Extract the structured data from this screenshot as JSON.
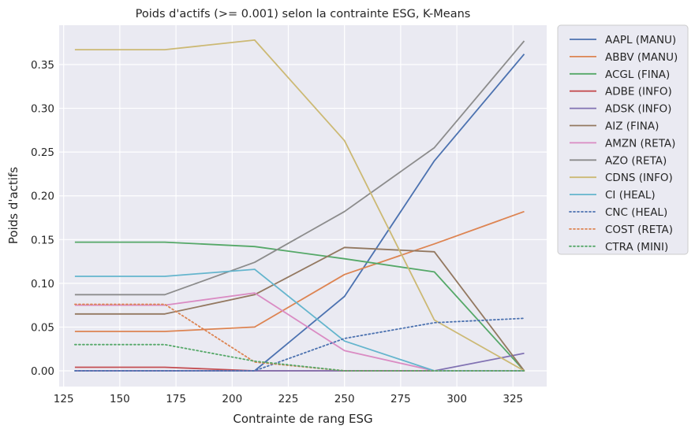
{
  "chart_data": {
    "type": "line",
    "title": "Poids d'actifs (>= 0.001) selon la contrainte ESG, K-Means",
    "xlabel": "Contrainte de rang ESG",
    "ylabel": "Poids d'actifs",
    "x": [
      130,
      170,
      210,
      250,
      290,
      330
    ],
    "xlim": [
      123,
      340
    ],
    "ylim": [
      -0.018,
      0.395
    ],
    "xticks": [
      125,
      150,
      175,
      200,
      225,
      250,
      275,
      300,
      325
    ],
    "yticks": [
      0.0,
      0.05,
      0.1,
      0.15,
      0.2,
      0.25,
      0.3,
      0.35
    ],
    "ytick_labels": [
      "0.00",
      "0.05",
      "0.10",
      "0.15",
      "0.20",
      "0.25",
      "0.30",
      "0.35"
    ],
    "grid": true,
    "legend_placement": "outside-right",
    "background": "#eaeaf2",
    "series": [
      {
        "name": "AAPL (MANU)",
        "color": "#4c72b0",
        "dash": "solid",
        "values": [
          0.0,
          0.0,
          0.0,
          0.085,
          0.24,
          0.362
        ]
      },
      {
        "name": "ABBV (MANU)",
        "color": "#dd8452",
        "dash": "solid",
        "values": [
          0.045,
          0.045,
          0.05,
          0.11,
          0.145,
          0.182
        ]
      },
      {
        "name": "ACGL (FINA)",
        "color": "#55a868",
        "dash": "solid",
        "values": [
          0.147,
          0.147,
          0.142,
          0.128,
          0.113,
          0.0
        ]
      },
      {
        "name": "ADBE (INFO)",
        "color": "#c44e52",
        "dash": "solid",
        "values": [
          0.004,
          0.004,
          0.0,
          0.0,
          0.0,
          0.0
        ]
      },
      {
        "name": "ADSK (INFO)",
        "color": "#8172b3",
        "dash": "solid",
        "values": [
          0.0,
          0.0,
          0.0,
          0.0,
          0.0,
          0.02
        ]
      },
      {
        "name": "AIZ (FINA)",
        "color": "#937860",
        "dash": "solid",
        "values": [
          0.065,
          0.065,
          0.087,
          0.141,
          0.136,
          0.0
        ]
      },
      {
        "name": "AMZN (RETA)",
        "color": "#da8bc3",
        "dash": "solid",
        "values": [
          0.075,
          0.075,
          0.089,
          0.023,
          0.0,
          0.0
        ]
      },
      {
        "name": "AZO (RETA)",
        "color": "#8c8c8c",
        "dash": "solid",
        "values": [
          0.087,
          0.087,
          0.124,
          0.182,
          0.255,
          0.377
        ]
      },
      {
        "name": "CDNS (INFO)",
        "color": "#ccb974",
        "dash": "solid",
        "values": [
          0.367,
          0.367,
          0.378,
          0.263,
          0.058,
          0.0
        ]
      },
      {
        "name": "CI (HEAL)",
        "color": "#64b5cd",
        "dash": "solid",
        "values": [
          0.108,
          0.108,
          0.116,
          0.034,
          0.0,
          0.0
        ]
      },
      {
        "name": "CNC (HEAL)",
        "color": "#4c72b0",
        "dash": "dotted",
        "values": [
          0.0,
          0.0,
          0.0,
          0.037,
          0.055,
          0.06
        ]
      },
      {
        "name": "COST (RETA)",
        "color": "#dd8452",
        "dash": "dotted",
        "values": [
          0.076,
          0.076,
          0.01,
          0.0,
          0.0,
          0.0
        ]
      },
      {
        "name": "CTRA (MINI)",
        "color": "#55a868",
        "dash": "dotted",
        "values": [
          0.03,
          0.03,
          0.011,
          0.0,
          0.0,
          0.0
        ]
      }
    ]
  }
}
